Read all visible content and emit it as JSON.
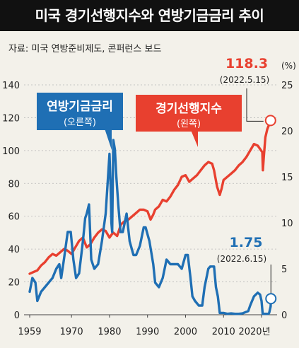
{
  "header": {
    "title": "미국 경기선행지수와 연방기금금리 추이",
    "source": "자료: 미국 연방준비제도, 콘퍼런스 보드"
  },
  "colors": {
    "background": "#f3f1ea",
    "lei_red": "#e8402f",
    "fed_blue": "#1f6fb4",
    "grid": "#b8b8b8"
  },
  "chart_data": {
    "type": "line",
    "x_ticks": [
      "1959",
      "1970",
      "1980",
      "1990",
      "2000",
      "2010",
      "2020년"
    ],
    "x_tick_years": [
      1959,
      1970,
      1980,
      1990,
      2000,
      2010,
      2020
    ],
    "xlim": [
      1959,
      2022.6
    ],
    "y_left": {
      "ticks": [
        "0",
        "20",
        "40",
        "60",
        "80",
        "100",
        "120",
        "140"
      ],
      "ylim": [
        0,
        140
      ]
    },
    "y_right": {
      "ticks": [
        "0",
        "5",
        "10",
        "15",
        "20",
        "25"
      ],
      "ylim": [
        0,
        25
      ],
      "unit": "(%)"
    },
    "series": [
      {
        "name": "경기선행지수",
        "label_sub": "(왼쪽)",
        "axis": "left",
        "color": "#e8402f",
        "end_value": "118.3",
        "end_date": "(2022.5.15)",
        "x": [
          1959,
          1960,
          1961,
          1962,
          1963,
          1964,
          1965,
          1966,
          1967,
          1968,
          1969,
          1970,
          1971,
          1972,
          1973,
          1974,
          1975,
          1976,
          1977,
          1978,
          1979,
          1980,
          1980.6,
          1981,
          1982,
          1983,
          1984,
          1985,
          1986,
          1987,
          1988,
          1989,
          1990,
          1990.8,
          1991.5,
          1992,
          1993,
          1994,
          1995,
          1996,
          1997,
          1998,
          1999,
          2000,
          2001,
          2002,
          2003,
          2004,
          2005,
          2006,
          2007,
          2007.5,
          2008.3,
          2009,
          2009.5,
          2010,
          2011,
          2012,
          2013,
          2014,
          2015,
          2016,
          2017,
          2018,
          2019,
          2020.2,
          2020.35,
          2020.6,
          2021,
          2021.5,
          2022,
          2022.37
        ],
        "values": [
          25,
          26,
          27,
          30,
          32,
          35,
          37,
          36,
          38,
          40,
          39,
          37,
          41,
          45,
          47,
          41,
          43,
          47,
          50,
          52,
          51,
          47,
          49,
          50,
          48,
          55,
          57,
          58,
          60,
          62,
          64,
          64,
          63,
          58,
          61,
          64,
          66,
          70,
          69,
          72,
          76,
          79,
          84,
          85,
          81,
          83,
          85,
          88,
          91,
          93,
          92,
          88,
          78,
          73,
          77,
          82,
          84,
          86,
          88,
          91,
          93,
          96,
          100,
          104,
          103,
          99,
          88,
          96,
          108,
          113,
          116,
          118.3
        ]
      },
      {
        "name": "연방기금금리",
        "label_sub": "(오른쪽)",
        "axis": "right",
        "color": "#1f6fb4",
        "end_value": "1.75",
        "end_date": "(2022.6.15)",
        "x": [
          1959,
          1959.7,
          1960.5,
          1961,
          1962,
          1963,
          1964,
          1965,
          1966,
          1966.8,
          1967.3,
          1968,
          1969,
          1969.8,
          1970.5,
          1971.2,
          1972,
          1973,
          1973.6,
          1974,
          1974.6,
          1975.2,
          1976,
          1977,
          1978,
          1979,
          1980,
          1980.3,
          1980.5,
          1980.7,
          1981,
          1981.4,
          1981.8,
          1982.3,
          1982.9,
          1983.5,
          1984.5,
          1985.3,
          1986.3,
          1987,
          1988,
          1989,
          1989.5,
          1990.5,
          1991.5,
          1992,
          1993,
          1994,
          1995,
          1996,
          1997,
          1998,
          1999,
          2000,
          2000.6,
          2001.3,
          2001.8,
          2002.5,
          2003.5,
          2004.4,
          2005,
          2006,
          2006.5,
          2007.5,
          2008,
          2008.5,
          2009,
          2010,
          2011,
          2012,
          2013,
          2014,
          2015,
          2015.9,
          2016.5,
          2017,
          2018,
          2019,
          2019.6,
          2020,
          2020.3,
          2021,
          2021.8,
          2022,
          2022.4,
          2022.46
        ],
        "values": [
          2.5,
          4,
          3.5,
          1.5,
          2.5,
          3,
          3.5,
          4,
          5,
          5.5,
          4,
          6,
          9,
          9,
          6,
          4,
          4.5,
          8,
          10.5,
          11,
          12,
          6,
          5,
          5.5,
          8,
          11,
          17.5,
          14,
          10,
          9,
          19,
          18,
          15,
          12,
          9,
          9,
          11,
          8,
          6.5,
          6.5,
          7.5,
          9.5,
          9.5,
          8,
          5.5,
          3.5,
          3,
          4,
          6,
          5.5,
          5.5,
          5.5,
          5,
          6.5,
          6.5,
          4,
          2,
          1.5,
          1,
          1,
          3,
          5,
          5.25,
          5.25,
          3,
          2,
          0.2,
          0.2,
          0.1,
          0.15,
          0.1,
          0.1,
          0.15,
          0.3,
          0.4,
          1,
          2,
          2.4,
          2.2,
          1.5,
          0.1,
          0.1,
          0.1,
          0.2,
          0.9,
          1.75
        ]
      }
    ]
  }
}
